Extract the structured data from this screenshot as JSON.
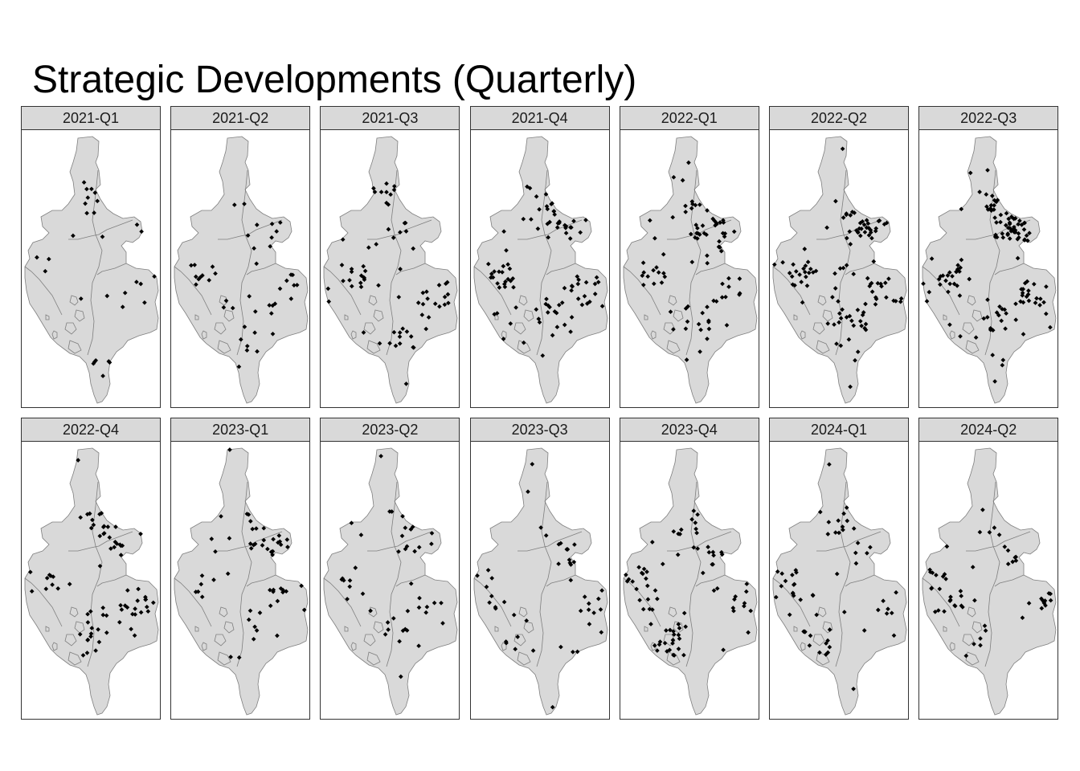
{
  "title": "Strategic Developments (Quarterly)",
  "style": {
    "land_fill": "#d9d9d9",
    "boundary_color": "#7f7f7f",
    "point_color": "#000000",
    "strip_fill": "#d9d9d9"
  },
  "panels": [
    {
      "label": "2021-Q1",
      "density": 30,
      "cluster": "low"
    },
    {
      "label": "2021-Q2",
      "density": 45,
      "cluster": "mid"
    },
    {
      "label": "2021-Q3",
      "density": 70,
      "cluster": "mid"
    },
    {
      "label": "2021-Q4",
      "density": 95,
      "cluster": "east"
    },
    {
      "label": "2022-Q1",
      "density": 85,
      "cluster": "east"
    },
    {
      "label": "2022-Q2",
      "density": 110,
      "cluster": "east"
    },
    {
      "label": "2022-Q3",
      "density": 130,
      "cluster": "east"
    },
    {
      "label": "2022-Q4",
      "density": 75,
      "cluster": "east"
    },
    {
      "label": "2023-Q1",
      "density": 55,
      "cluster": "east"
    },
    {
      "label": "2023-Q2",
      "density": 45,
      "cluster": "east"
    },
    {
      "label": "2023-Q3",
      "density": 45,
      "cluster": "west"
    },
    {
      "label": "2023-Q4",
      "density": 80,
      "cluster": "west"
    },
    {
      "label": "2024-Q1",
      "density": 60,
      "cluster": "west"
    },
    {
      "label": "2024-Q2",
      "density": 55,
      "cluster": "west"
    }
  ]
}
